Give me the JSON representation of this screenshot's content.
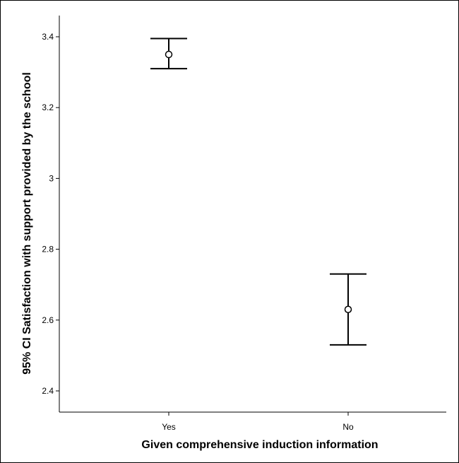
{
  "chart_data": {
    "type": "errorbar",
    "xlabel": "Given comprehensive induction information",
    "ylabel": "95% CI Satisfaction with support provided by the school",
    "categories": [
      "Yes",
      "No"
    ],
    "series": [
      {
        "values": [
          3.35,
          2.63
        ],
        "lower": [
          3.31,
          2.53
        ],
        "upper": [
          3.395,
          2.73
        ]
      }
    ],
    "ylim": [
      2.35,
      3.46
    ],
    "yticks": [
      2.4,
      2.6,
      2.8,
      3,
      3.2,
      3.4
    ],
    "ytick_labels": [
      "2.4",
      "2.6",
      "2.8",
      "3",
      "3.2",
      "3.4"
    ],
    "grid": false,
    "colors": {
      "line": "#000000",
      "background": "#ffffff"
    }
  }
}
